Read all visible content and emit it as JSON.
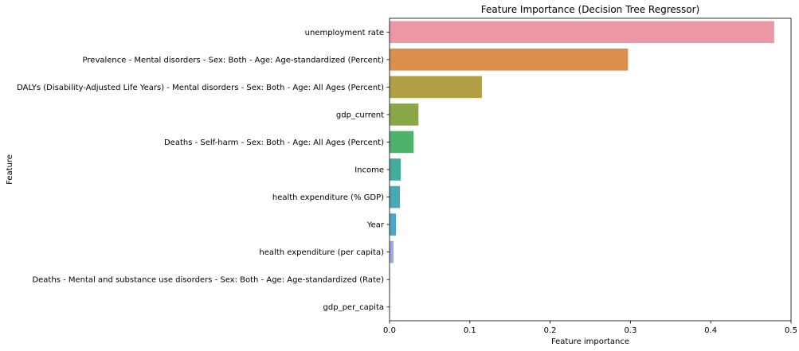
{
  "chart_data": {
    "type": "bar",
    "orientation": "horizontal",
    "title": "Feature Importance (Decision Tree Regressor)",
    "xlabel": "Feature importance",
    "ylabel": "Feature",
    "xlim": [
      0,
      0.5
    ],
    "x_ticks": [
      0,
      0.1,
      0.2,
      0.3,
      0.4,
      0.5
    ],
    "x_tick_labels": [
      "0.0",
      "0.1",
      "0.2",
      "0.3",
      "0.4",
      "0.5"
    ],
    "grid": false,
    "categories": [
      "unemployment rate",
      "Prevalence - Mental disorders - Sex: Both - Age: Age-standardized (Percent)",
      "DALYs (Disability-Adjusted Life Years) - Mental disorders - Sex: Both - Age: All Ages (Percent)",
      "gdp_current",
      "Deaths - Self-harm - Sex: Both - Age: All Ages (Percent)",
      "Income",
      "health expenditure (% GDP)",
      "Year",
      "health expenditure (per capita)",
      "Deaths - Mental and substance use disorders - Sex: Both - Age: Age-standardized (Rate)",
      "gdp_per_capita"
    ],
    "values": [
      0.479,
      0.297,
      0.115,
      0.036,
      0.03,
      0.014,
      0.013,
      0.008,
      0.005,
      0.0005,
      0.0002
    ],
    "colors": [
      "#ec97a5",
      "#dc8f4c",
      "#b39f45",
      "#8ba647",
      "#4fb26a",
      "#46ac9a",
      "#49aab5",
      "#4ca6cc",
      "#a2a8e6",
      "#d398e4",
      "#e394cf"
    ]
  }
}
